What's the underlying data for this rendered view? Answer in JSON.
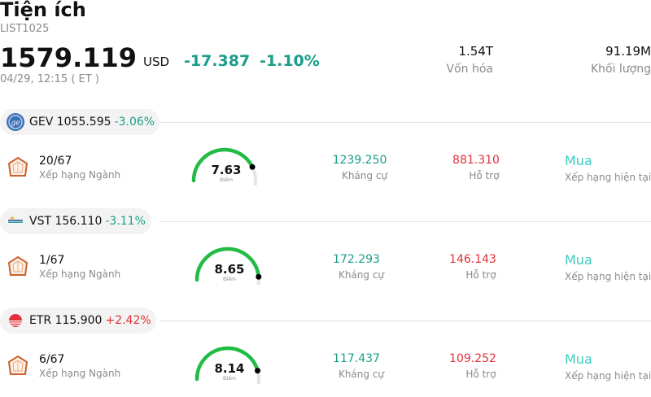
{
  "header": {
    "title": "Tiện ích",
    "code": "LIST1025",
    "price": "1579.119",
    "currency": "USD",
    "change": "-17.387",
    "change_pct": "-1.10%",
    "time": "04/29, 12:15 ( ET )"
  },
  "stats": [
    {
      "value": "1.54T",
      "label": "Vốn hóa"
    },
    {
      "value": "91.19M",
      "label": "Khối lượng"
    }
  ],
  "colors": {
    "down": "#1a9e8a",
    "up": "#e0303a",
    "rating": "#3ecdc0",
    "gauge_green": "#22bb44"
  },
  "stocks": [
    {
      "ticker": "GEV 1055.595",
      "change_pct": "-3.06%",
      "direction": "down",
      "logo_icon": "ge-logo-icon",
      "rank": "20/67",
      "rank_label": "Xếp hạng Ngành",
      "score": "7.63",
      "score_fraction": 0.763,
      "score_label": "Điểm",
      "resistance": "1239.250",
      "resistance_label": "Kháng cự",
      "support": "881.310",
      "support_label": "Hỗ trợ",
      "rating": "Mua",
      "rating_label": "Xếp hạng hiện tại"
    },
    {
      "ticker": "VST 156.110",
      "change_pct": "-3.11%",
      "direction": "down",
      "logo_icon": "vistra-logo-icon",
      "rank": "1/67",
      "rank_label": "Xếp hạng Ngành",
      "score": "8.65",
      "score_fraction": 0.865,
      "score_label": "Điểm",
      "resistance": "172.293",
      "resistance_label": "Kháng cự",
      "support": "146.143",
      "support_label": "Hỗ trợ",
      "rating": "Mua",
      "rating_label": "Xếp hạng hiện tại"
    },
    {
      "ticker": "ETR 115.900",
      "change_pct": "+2.42%",
      "direction": "up",
      "logo_icon": "entergy-logo-icon",
      "rank": "6/67",
      "rank_label": "Xếp hạng Ngành",
      "score": "8.14",
      "score_fraction": 0.814,
      "score_label": "Điểm",
      "resistance": "117.437",
      "resistance_label": "Kháng cự",
      "support": "109.252",
      "support_label": "Hỗ trợ",
      "rating": "Mua",
      "rating_label": "Xếp hạng hiện tại"
    }
  ]
}
